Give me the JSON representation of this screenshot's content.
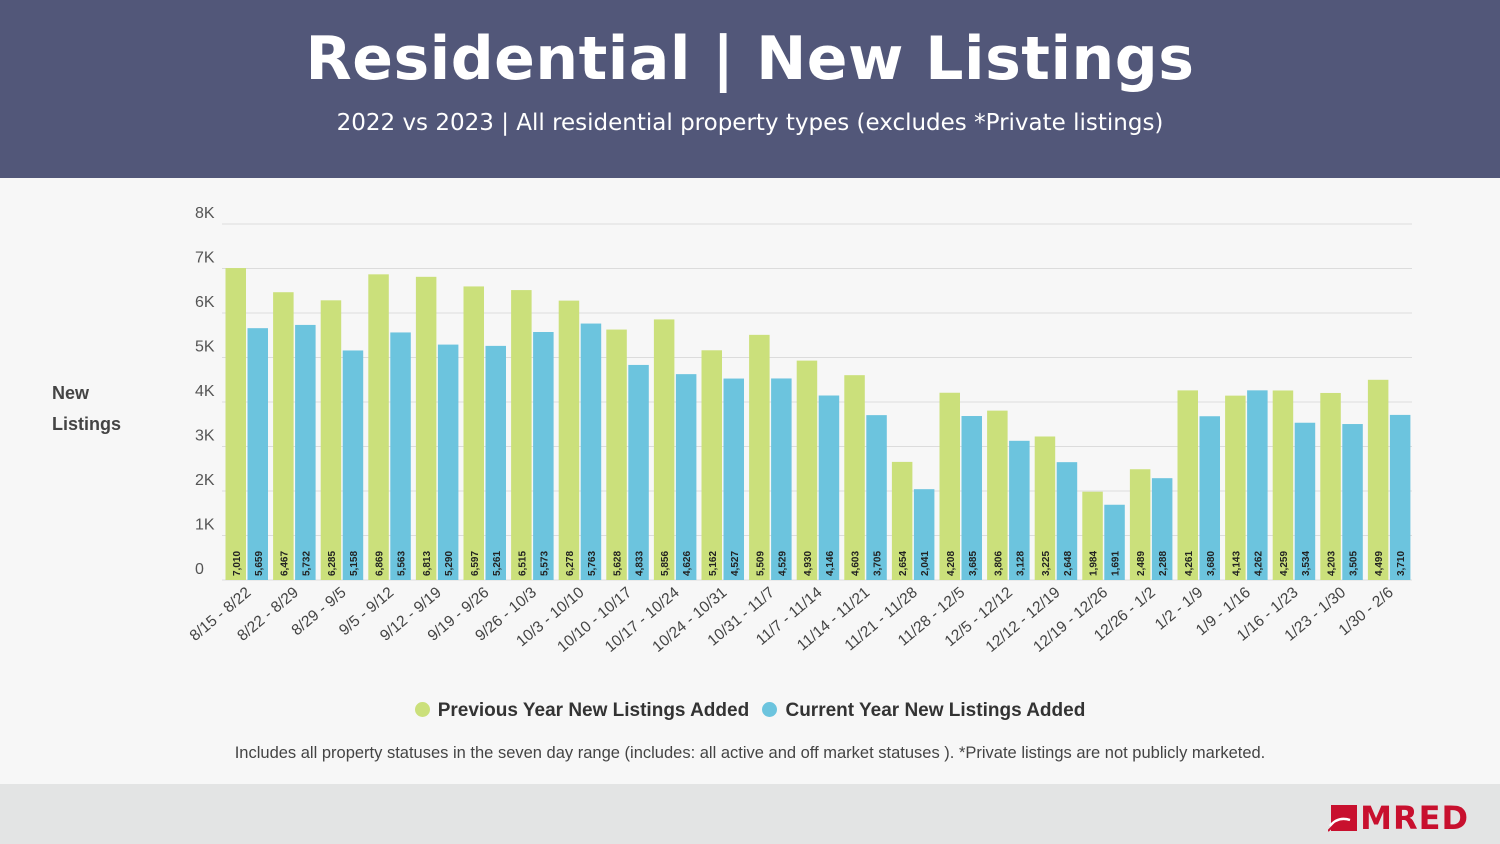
{
  "header": {
    "title": "Residential | New Listings",
    "subtitle": "2022 vs 2023 | All residential property types (excludes *Private listings)"
  },
  "chart_data": {
    "type": "bar",
    "ylabel": "New Listings",
    "ylim": [
      0,
      8000
    ],
    "yticks": [
      {
        "value": 0,
        "label": "0"
      },
      {
        "value": 1000,
        "label": "1K"
      },
      {
        "value": 2000,
        "label": "2K"
      },
      {
        "value": 3000,
        "label": "3K"
      },
      {
        "value": 4000,
        "label": "4K"
      },
      {
        "value": 5000,
        "label": "5K"
      },
      {
        "value": 6000,
        "label": "6K"
      },
      {
        "value": 7000,
        "label": "7K"
      },
      {
        "value": 8000,
        "label": "8K"
      }
    ],
    "grid": true,
    "categories": [
      "8/15 - 8/22",
      "8/22 - 8/29",
      "8/29 - 9/5",
      "9/5 - 9/12",
      "9/12 - 9/19",
      "9/19 - 9/26",
      "9/26 - 10/3",
      "10/3 - 10/10",
      "10/10 - 10/17",
      "10/17 - 10/24",
      "10/24 - 10/31",
      "10/31 - 11/7",
      "11/7 - 11/14",
      "11/14 - 11/21",
      "11/21 - 11/28",
      "11/28 - 12/5",
      "12/5 - 12/12",
      "12/12 - 12/19",
      "12/19 - 12/26",
      "12/26 - 1/2",
      "1/2 - 1/9",
      "1/9 - 1/16",
      "1/16 - 1/23",
      "1/23 - 1/30",
      "1/30 - 2/6"
    ],
    "series": [
      {
        "name": "Previous Year New Listings Added",
        "color": "#cbe07b",
        "values": [
          7010,
          6467,
          6285,
          6869,
          6813,
          6597,
          6515,
          6278,
          5628,
          5856,
          5162,
          5509,
          4930,
          4603,
          2654,
          4208,
          3806,
          3225,
          1984,
          2489,
          4261,
          4143,
          4259,
          4203,
          4499
        ],
        "labels": [
          "7,010",
          "6,467",
          "6,285",
          "6,869",
          "6,813",
          "6,597",
          "6,515",
          "6,278",
          "5,628",
          "5,856",
          "5,162",
          "5,509",
          "4,930",
          "4,603",
          "2,654",
          "4,208",
          "3,806",
          "3,225",
          "1,984",
          "2,489",
          "4,261",
          "4,143",
          "4,259",
          "4,203",
          "4,499"
        ]
      },
      {
        "name": "Current Year New Listings Added",
        "color": "#6cc4de",
        "values": [
          5659,
          5732,
          5158,
          5563,
          5290,
          5261,
          5573,
          5763,
          4833,
          4626,
          4527,
          4529,
          4146,
          3705,
          2041,
          3685,
          3128,
          2648,
          1691,
          2288,
          3680,
          4262,
          3534,
          3505,
          3710
        ],
        "labels": [
          "5,659",
          "5,732",
          "5,158",
          "5,563",
          "5,290",
          "5,261",
          "5,573",
          "5,763",
          "4,833",
          "4,626",
          "4,527",
          "4,529",
          "4,146",
          "3,705",
          "2,041",
          "3,685",
          "3,128",
          "2,648",
          "1,691",
          "2,288",
          "3,680",
          "4,262",
          "3,534",
          "3,505",
          "3,710"
        ]
      }
    ],
    "legend_position": "bottom"
  },
  "y_title": {
    "line1": "New",
    "line2": "Listings"
  },
  "legend": {
    "prev_label": "Previous Year New Listings Added",
    "curr_label": "Current Year New Listings Added",
    "prev_color": "#cbe07b",
    "curr_color": "#6cc4de"
  },
  "note": "Includes all property statuses in the seven day range (includes: all active and off market statuses ). *Private listings are not publicly marketed.",
  "logo": {
    "text": "MRED",
    "icon": "mred-logo-icon",
    "color": "#c8102e"
  }
}
